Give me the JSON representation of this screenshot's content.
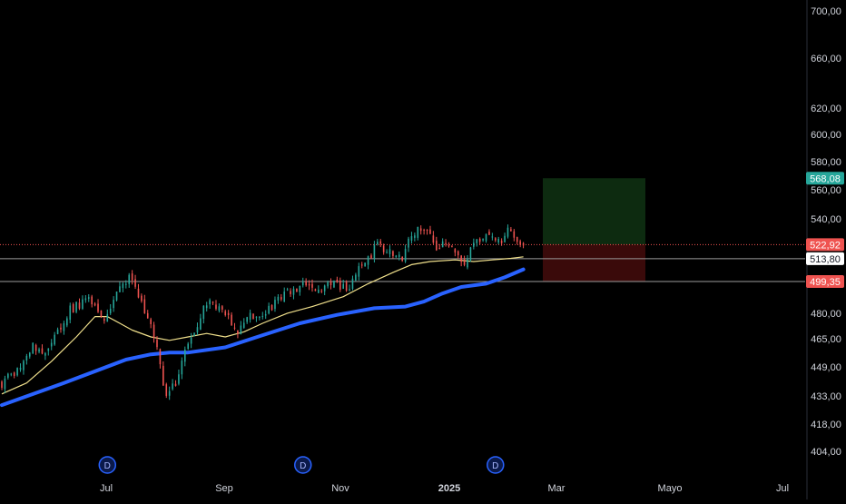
{
  "chart_data": {
    "type": "candlestick",
    "title": "",
    "xlabel": "",
    "ylabel": "",
    "scale": "log",
    "grid": false,
    "ylim": [
      392,
      712
    ],
    "y_ticks": [
      {
        "value": 700,
        "label": "700,00"
      },
      {
        "value": 660,
        "label": "660,00"
      },
      {
        "value": 620,
        "label": "620,00"
      },
      {
        "value": 600,
        "label": "600,00"
      },
      {
        "value": 580,
        "label": "580,00"
      },
      {
        "value": 560,
        "label": "560,00"
      },
      {
        "value": 540,
        "label": "540,00"
      },
      {
        "value": 480,
        "label": "480,00"
      },
      {
        "value": 465,
        "label": "465,00"
      },
      {
        "value": 449,
        "label": "449,00"
      },
      {
        "value": 433,
        "label": "433,00"
      },
      {
        "value": 418,
        "label": "418,00"
      },
      {
        "value": 404,
        "label": "404,00"
      }
    ],
    "x_ticks": [
      {
        "label": "Jul",
        "bold": false
      },
      {
        "label": "Sep",
        "bold": false
      },
      {
        "label": "Nov",
        "bold": false
      },
      {
        "label": "2025",
        "bold": true
      },
      {
        "label": "Mar",
        "bold": false
      },
      {
        "label": "Mayo",
        "bold": false
      },
      {
        "label": "Jul",
        "bold": false
      }
    ],
    "price_series": {
      "name": "",
      "up_color": "#26a69a",
      "down_color": "#ef5350",
      "anchors": [
        [
          0,
          440
        ],
        [
          4,
          446
        ],
        [
          10,
          460
        ],
        [
          15,
          458
        ],
        [
          22,
          482
        ],
        [
          28,
          488
        ],
        [
          33,
          475
        ],
        [
          38,
          498
        ],
        [
          41,
          502
        ],
        [
          45,
          485
        ],
        [
          48,
          475
        ],
        [
          51,
          450
        ],
        [
          53,
          432
        ],
        [
          56,
          440
        ],
        [
          60,
          462
        ],
        [
          66,
          487
        ],
        [
          72,
          480
        ],
        [
          76,
          468
        ],
        [
          80,
          478
        ],
        [
          86,
          482
        ],
        [
          92,
          492
        ],
        [
          98,
          498
        ],
        [
          103,
          493
        ],
        [
          107,
          500
        ],
        [
          111,
          494
        ],
        [
          116,
          510
        ],
        [
          121,
          522
        ],
        [
          125,
          518
        ],
        [
          129,
          512
        ],
        [
          132,
          530
        ],
        [
          136,
          535
        ],
        [
          140,
          522
        ],
        [
          143,
          523
        ],
        [
          146,
          518
        ],
        [
          149,
          510
        ],
        [
          152,
          522
        ],
        [
          156,
          528
        ],
        [
          160,
          525
        ],
        [
          164,
          533
        ],
        [
          168,
          520
        ]
      ]
    },
    "ma_fast": {
      "name": "",
      "color": "#f0e08c",
      "points": [
        [
          0,
          434
        ],
        [
          8,
          440
        ],
        [
          16,
          452
        ],
        [
          24,
          466
        ],
        [
          30,
          478
        ],
        [
          34,
          478
        ],
        [
          38,
          474
        ],
        [
          42,
          470
        ],
        [
          48,
          466
        ],
        [
          54,
          464
        ],
        [
          60,
          466
        ],
        [
          66,
          468
        ],
        [
          72,
          466
        ],
        [
          78,
          469
        ],
        [
          84,
          474
        ],
        [
          92,
          480
        ],
        [
          100,
          484
        ],
        [
          110,
          490
        ],
        [
          118,
          498
        ],
        [
          126,
          505
        ],
        [
          132,
          510
        ],
        [
          138,
          512
        ],
        [
          146,
          513
        ],
        [
          152,
          512
        ],
        [
          158,
          513
        ],
        [
          164,
          514
        ],
        [
          168,
          515
        ]
      ]
    },
    "ma_slow": {
      "name": "",
      "color": "#2962ff",
      "points": [
        [
          0,
          428
        ],
        [
          20,
          440
        ],
        [
          40,
          453
        ],
        [
          48,
          456
        ],
        [
          54,
          457
        ],
        [
          60,
          457
        ],
        [
          72,
          460
        ],
        [
          84,
          467
        ],
        [
          96,
          474
        ],
        [
          108,
          479
        ],
        [
          120,
          483
        ],
        [
          130,
          484
        ],
        [
          136,
          487
        ],
        [
          142,
          492
        ],
        [
          148,
          496
        ],
        [
          156,
          498
        ],
        [
          162,
          502
        ],
        [
          168,
          507
        ]
      ]
    },
    "levels": [
      {
        "value": 522.92,
        "label": "522,92",
        "color": "#ef5350",
        "style": "dotted",
        "label_bg": "#ef5350",
        "label_color": "#ffffff"
      },
      {
        "value": 513.8,
        "label": "513,80",
        "color": "#9b9b9b",
        "style": "solid",
        "label_bg": "#ffffff",
        "label_color": "#131722"
      },
      {
        "value": 499.35,
        "label": "499,35",
        "color": "#9b9b9b",
        "style": "solid",
        "label_bg": "#ef5350",
        "label_color": "#ffffff"
      },
      {
        "value": 568.08,
        "label": "568,08",
        "color": "#26a69a",
        "style": "none",
        "label_bg": "#26a69a",
        "label_color": "#ffffff"
      }
    ],
    "position": {
      "entry": 522.92,
      "target": 568.08,
      "stop": 499.35,
      "profit_color": "#0d2b10",
      "loss_color": "#3a0a0a"
    },
    "markers": [
      {
        "label": "D",
        "bar": 34
      },
      {
        "label": "D",
        "bar": 97
      },
      {
        "label": "D",
        "bar": 159
      }
    ],
    "colors": {
      "background": "#000000",
      "axis_text": "#d1d4dc",
      "axis_border": "#2a2e39",
      "marker": "#2962ff"
    }
  }
}
